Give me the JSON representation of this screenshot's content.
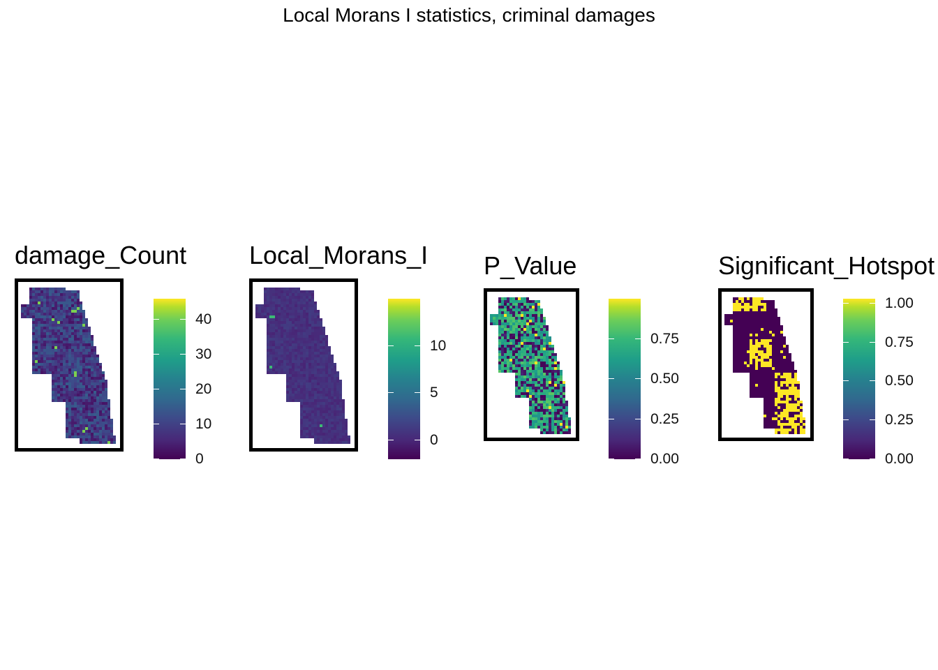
{
  "title": "Local Morans I statistics, criminal damages",
  "colors": {
    "viridis_low": "#440154",
    "viridis_mid": "#21918c",
    "viridis_high": "#fde725"
  },
  "panels": [
    {
      "title": "damage_Count",
      "legend": {
        "min": 0,
        "max": 46,
        "ticks": [
          {
            "value": 0,
            "label": "0"
          },
          {
            "value": 10,
            "label": "10"
          },
          {
            "value": 20,
            "label": "20"
          },
          {
            "value": 30,
            "label": "30"
          },
          {
            "value": 40,
            "label": "40"
          }
        ]
      }
    },
    {
      "title": "Local_Morans_I",
      "legend": {
        "min": -2,
        "max": 15,
        "ticks": [
          {
            "value": 0,
            "label": "0"
          },
          {
            "value": 5,
            "label": "5"
          },
          {
            "value": 10,
            "label": "10"
          }
        ]
      }
    },
    {
      "title": "P_Value",
      "legend": {
        "min": 0,
        "max": 1,
        "ticks": [
          {
            "value": 0,
            "label": "0.00"
          },
          {
            "value": 0.25,
            "label": "0.25"
          },
          {
            "value": 0.5,
            "label": "0.50"
          },
          {
            "value": 0.75,
            "label": "0.75"
          }
        ]
      }
    },
    {
      "title": "Significant_Hotspot",
      "legend": {
        "min": 0,
        "max": 1.03,
        "ticks": [
          {
            "value": 0,
            "label": "0.00"
          },
          {
            "value": 0.25,
            "label": "0.25"
          },
          {
            "value": 0.5,
            "label": "0.50"
          },
          {
            "value": 0.75,
            "label": "0.75"
          },
          {
            "value": 1.0,
            "label": "1.00"
          }
        ]
      }
    }
  ]
}
